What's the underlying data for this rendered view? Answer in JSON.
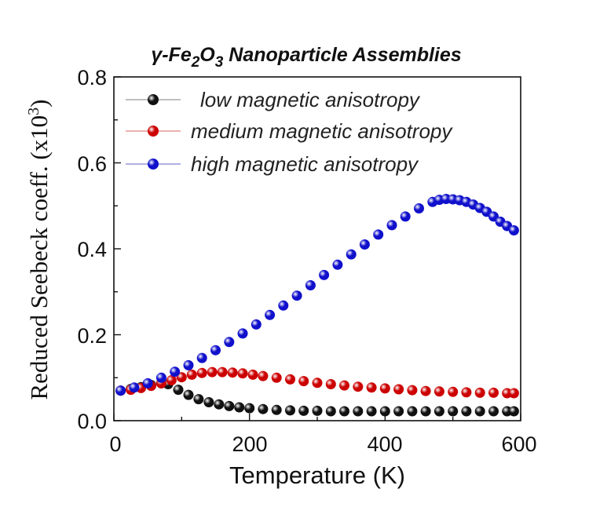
{
  "chart_data": {
    "type": "scatter",
    "title": {
      "prefix": "γ-Fe",
      "sub1": "2",
      "mid": "O",
      "sub2": "3",
      "suffix": " Nanoparticle Assemblies"
    },
    "xlabel": "Temperature (K)",
    "ylabel": {
      "main": "Reduced Seebeck coeff. (x10",
      "sup": "3",
      "close": ")"
    },
    "xlim": [
      0,
      600
    ],
    "ylim": [
      0,
      0.8
    ],
    "xticks": [
      "0",
      "200",
      "400",
      "600"
    ],
    "yticks": [
      "0.0",
      "0.2",
      "0.4",
      "0.6",
      "0.8"
    ],
    "legend_position": "top-left",
    "series": [
      {
        "name": "low magnetic anisotropy",
        "color": "#111111",
        "x": [
          10,
          25,
          40,
          55,
          70,
          80,
          95,
          110,
          125,
          140,
          155,
          170,
          185,
          200,
          220,
          240,
          260,
          280,
          300,
          320,
          340,
          360,
          380,
          400,
          420,
          440,
          460,
          480,
          500,
          520,
          540,
          560,
          580,
          590
        ],
        "y": [
          0.07,
          0.074,
          0.078,
          0.083,
          0.087,
          0.085,
          0.072,
          0.06,
          0.05,
          0.043,
          0.038,
          0.034,
          0.031,
          0.029,
          0.027,
          0.025,
          0.024,
          0.023,
          0.023,
          0.022,
          0.022,
          0.022,
          0.022,
          0.022,
          0.022,
          0.022,
          0.022,
          0.022,
          0.022,
          0.022,
          0.022,
          0.022,
          0.022,
          0.022
        ]
      },
      {
        "name": "medium magnetic anisotropy",
        "color": "#cc0000",
        "x": [
          10,
          25,
          40,
          55,
          70,
          85,
          100,
          115,
          130,
          145,
          160,
          175,
          190,
          205,
          220,
          240,
          260,
          280,
          300,
          320,
          340,
          360,
          380,
          400,
          420,
          440,
          460,
          480,
          500,
          520,
          540,
          560,
          580,
          590
        ],
        "y": [
          0.07,
          0.072,
          0.076,
          0.081,
          0.087,
          0.094,
          0.101,
          0.107,
          0.111,
          0.113,
          0.113,
          0.112,
          0.11,
          0.107,
          0.104,
          0.1,
          0.096,
          0.092,
          0.088,
          0.085,
          0.082,
          0.079,
          0.077,
          0.075,
          0.073,
          0.071,
          0.069,
          0.068,
          0.067,
          0.066,
          0.065,
          0.065,
          0.064,
          0.064
        ]
      },
      {
        "name": "high magnetic anisotropy",
        "color": "#1010cc",
        "x": [
          10,
          30,
          50,
          70,
          90,
          110,
          130,
          150,
          170,
          190,
          210,
          230,
          250,
          270,
          290,
          310,
          330,
          350,
          370,
          390,
          410,
          430,
          450,
          470,
          480,
          490,
          500,
          510,
          520,
          530,
          540,
          550,
          560,
          570,
          580,
          590
        ],
        "y": [
          0.07,
          0.077,
          0.087,
          0.1,
          0.114,
          0.129,
          0.146,
          0.164,
          0.183,
          0.203,
          0.224,
          0.246,
          0.268,
          0.291,
          0.315,
          0.339,
          0.363,
          0.387,
          0.41,
          0.433,
          0.455,
          0.475,
          0.494,
          0.509,
          0.514,
          0.516,
          0.515,
          0.513,
          0.509,
          0.503,
          0.495,
          0.486,
          0.475,
          0.463,
          0.453,
          0.443
        ]
      }
    ]
  }
}
